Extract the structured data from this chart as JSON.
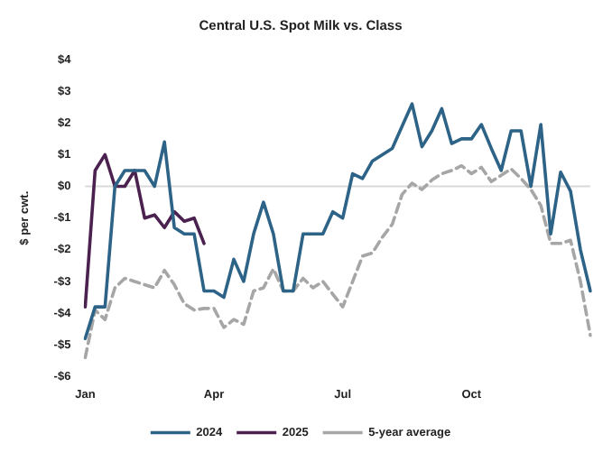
{
  "chart_data": {
    "type": "line",
    "title": "Central U.S. Spot Milk vs. Class",
    "ylabel": "$ per cwt.",
    "categories": [
      "Jan",
      null,
      null,
      null,
      null,
      null,
      null,
      null,
      null,
      null,
      null,
      null,
      null,
      "Apr",
      null,
      null,
      null,
      null,
      null,
      null,
      null,
      null,
      null,
      null,
      null,
      null,
      "Jul",
      null,
      null,
      null,
      null,
      null,
      null,
      null,
      null,
      null,
      null,
      null,
      null,
      "Oct",
      null,
      null,
      null,
      null,
      null,
      null,
      null,
      null,
      null,
      null,
      null,
      null
    ],
    "series": [
      {
        "name": "2024",
        "color": "#2e6388",
        "values": [
          -4.8,
          -3.8,
          -3.8,
          0,
          0.5,
          0.5,
          0.5,
          0,
          1.4,
          -1.3,
          -1.5,
          -1.5,
          -3.3,
          -3.3,
          -3.5,
          -2.3,
          -3.0,
          -1.5,
          -0.5,
          -1.5,
          -3.3,
          -3.3,
          -1.5,
          -1.5,
          -1.5,
          -0.8,
          -1.0,
          0.4,
          0.25,
          0.8,
          1.0,
          1.2,
          1.9,
          2.6,
          1.25,
          1.75,
          2.45,
          1.35,
          1.5,
          1.5,
          1.95,
          1.2,
          0.5,
          1.75,
          1.75,
          0,
          1.95,
          -1.5,
          0.45,
          -0.15,
          -2.0,
          -3.3
        ]
      },
      {
        "name": "2025",
        "color": "#4b2150",
        "values": [
          -3.8,
          0.5,
          1.0,
          0,
          0,
          0.5,
          -1.0,
          -0.9,
          -1.3,
          -0.8,
          -1.1,
          -1.0,
          -1.8,
          null,
          null,
          null,
          null,
          null,
          null,
          null,
          null,
          null,
          null,
          null,
          null,
          null,
          null,
          null,
          null,
          null,
          null,
          null,
          null,
          null,
          null,
          null,
          null,
          null,
          null,
          null,
          null,
          null,
          null,
          null,
          null,
          null,
          null,
          null,
          null,
          null,
          null,
          null
        ]
      },
      {
        "name": "5-year average",
        "color": "#a6a6a6",
        "line_style": "dashed",
        "values": [
          -5.4,
          -3.9,
          -4.2,
          -3.2,
          -2.9,
          -3.0,
          -3.1,
          -3.2,
          -2.65,
          -3.1,
          -3.7,
          -3.9,
          -3.85,
          -3.85,
          -4.45,
          -4.2,
          -4.35,
          -3.3,
          -3.2,
          -2.6,
          -3.3,
          -3.3,
          -2.9,
          -3.2,
          -3.0,
          -3.4,
          -3.8,
          -3.0,
          -2.2,
          -2.1,
          -1.6,
          -1.2,
          -0.25,
          0.1,
          -0.1,
          0.2,
          0.4,
          0.5,
          0.65,
          0.4,
          0.6,
          0.15,
          0.35,
          0.55,
          0.25,
          -0.1,
          -0.6,
          -1.8,
          -1.8,
          -1.7,
          -3.0,
          -4.7
        ]
      }
    ],
    "ylim": [
      -6,
      4
    ],
    "yticks": [
      {
        "value": 4,
        "label": "$4"
      },
      {
        "value": 3,
        "label": "$3"
      },
      {
        "value": 2,
        "label": "$2"
      },
      {
        "value": 1,
        "label": "$1"
      },
      {
        "value": 0,
        "label": "$0"
      },
      {
        "value": -1,
        "label": "-$1"
      },
      {
        "value": -2,
        "label": "-$2"
      },
      {
        "value": -3,
        "label": "-$3"
      },
      {
        "value": -4,
        "label": "-$4"
      },
      {
        "value": -5,
        "label": "-$5"
      },
      {
        "value": -6,
        "label": "-$6"
      }
    ],
    "ref_lines": [
      {
        "axis": "y",
        "value": 0,
        "color": "#d9d9d9"
      }
    ],
    "grid": false,
    "legend": "bottom",
    "marker": "none",
    "line_style": "solid"
  }
}
